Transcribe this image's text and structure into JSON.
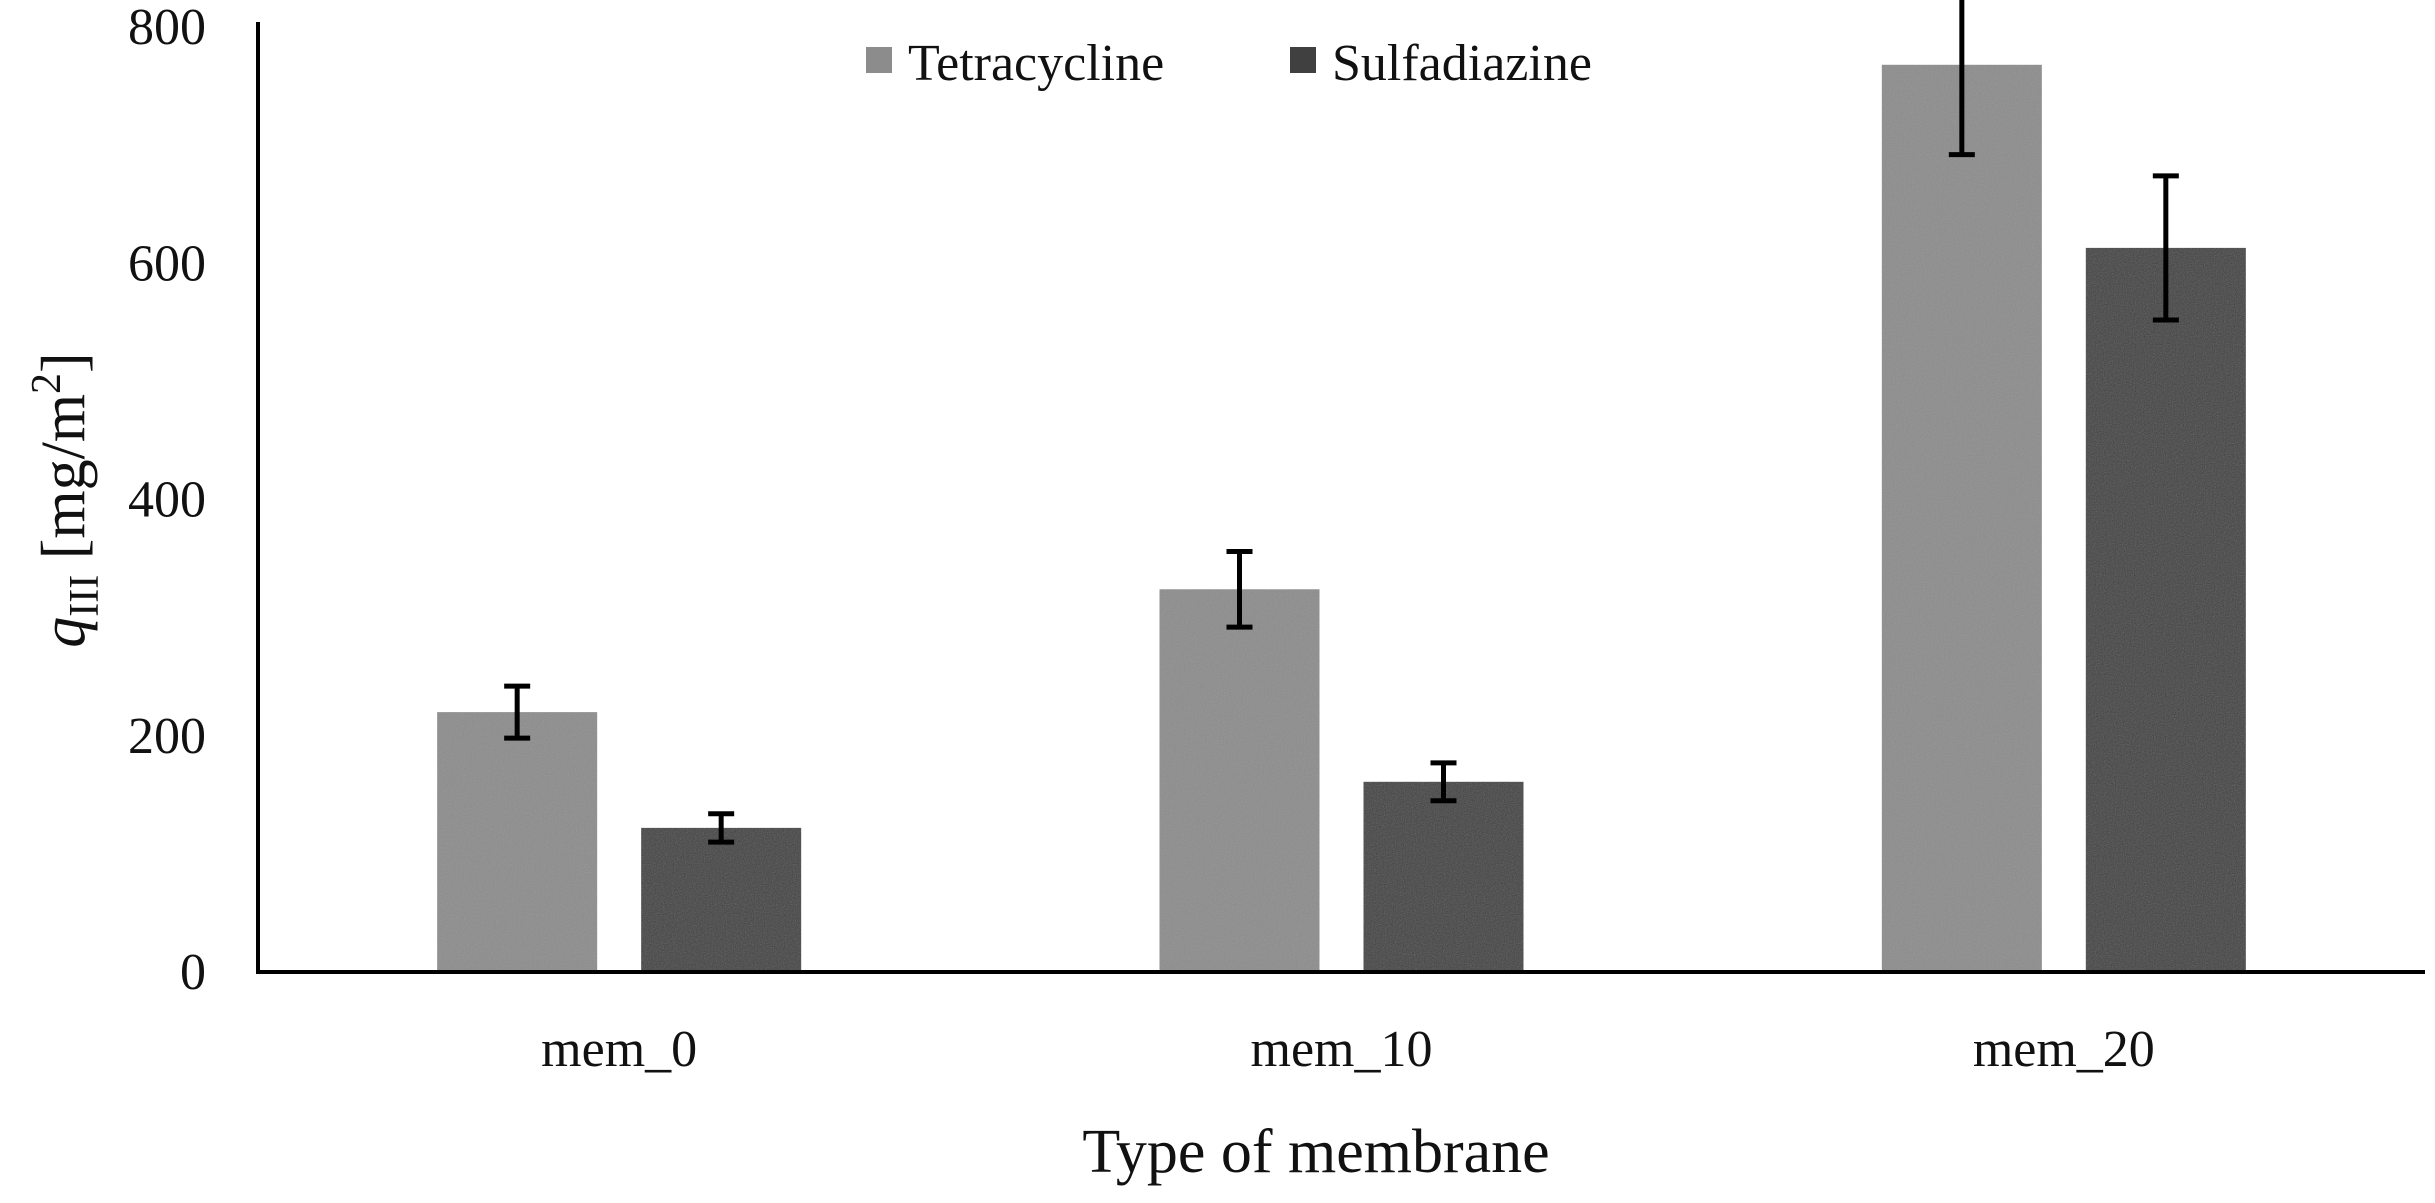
{
  "chart_data": {
    "type": "bar",
    "title": "",
    "xlabel": "Type of membrane",
    "ylabel": {
      "symbol": "q",
      "subscript": "III",
      "unit_open": " [mg/m",
      "unit_power": "2",
      "unit_close": "]"
    },
    "categories": [
      "mem_0",
      "mem_10",
      "mem_20"
    ],
    "ylim": [
      0,
      800
    ],
    "yticks": [
      0,
      200,
      400,
      600,
      800
    ],
    "grid": false,
    "legend_position": "top-center",
    "series": [
      {
        "name": "Tetracycline",
        "color": "#8c8c8c",
        "values": [
          220,
          324,
          768
        ],
        "errors": [
          22,
          32,
          76
        ]
      },
      {
        "name": "Sulfadiazine",
        "color": "#404040",
        "values": [
          122,
          161,
          613
        ],
        "errors": [
          12,
          16,
          61
        ]
      }
    ]
  }
}
